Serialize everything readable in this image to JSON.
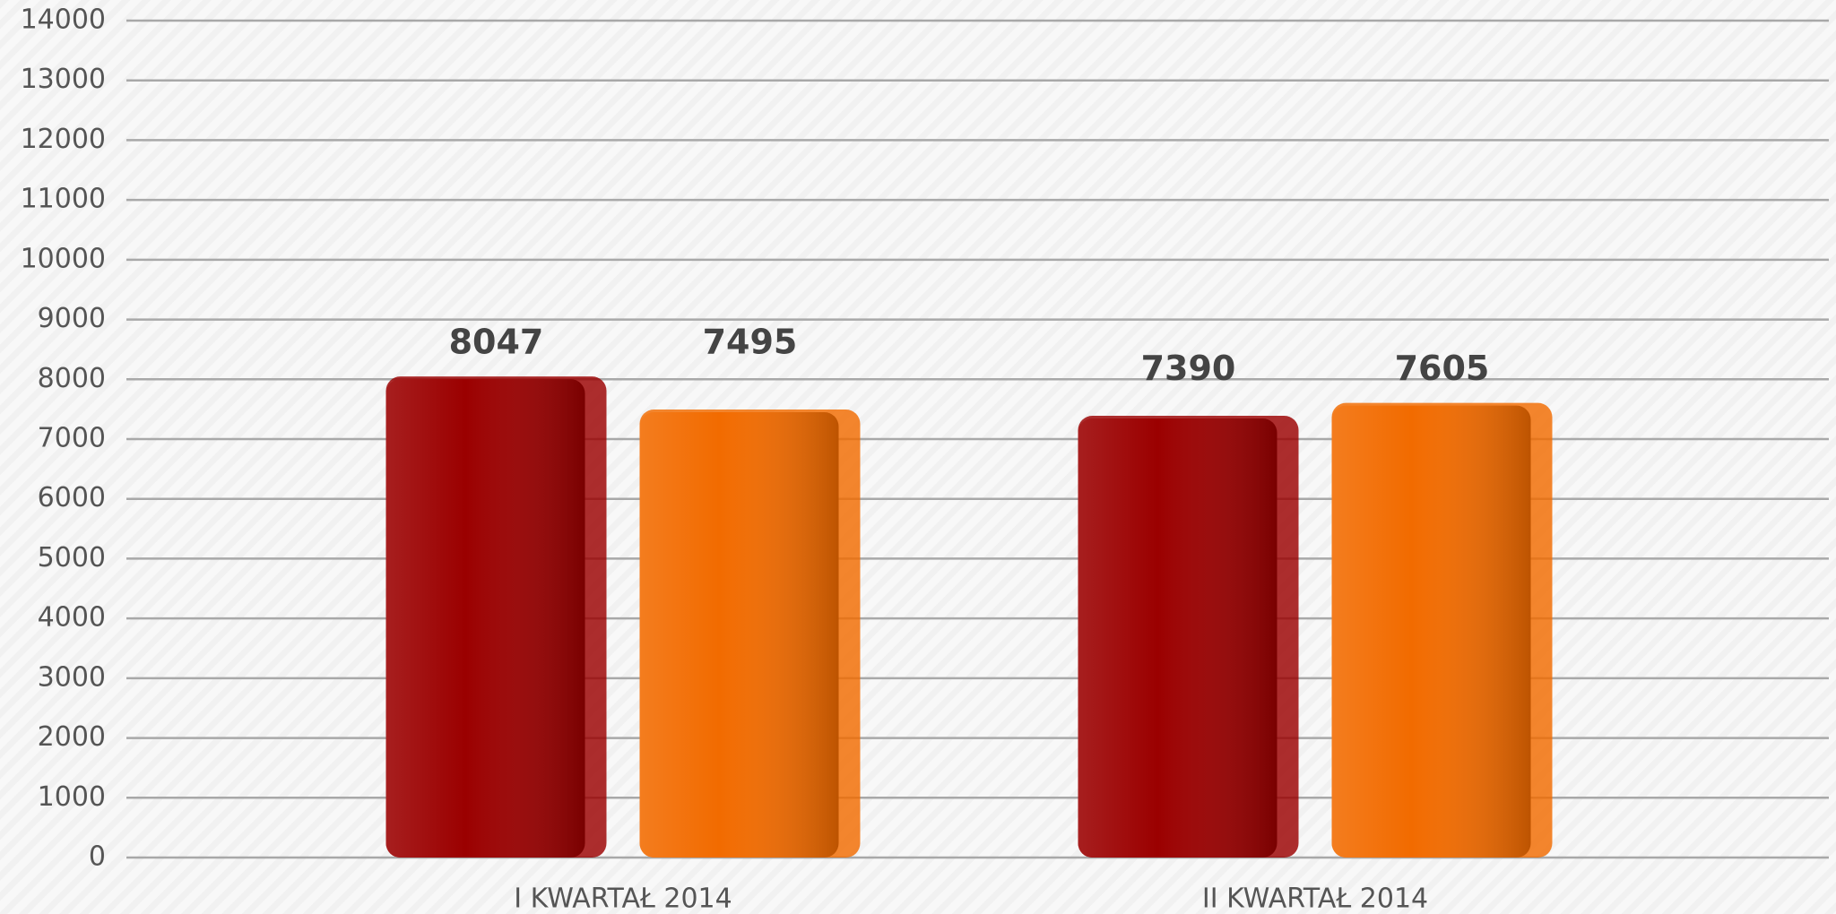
{
  "chart_data": {
    "type": "bar",
    "categories": [
      "I KWARTAŁ 2014",
      "II KWARTAŁ 2014"
    ],
    "series": [
      {
        "color": "#9b0000",
        "values": [
          8047,
          7390
        ]
      },
      {
        "color": "#f26b00",
        "values": [
          7495,
          7605
        ]
      }
    ],
    "ylim": [
      0,
      14000
    ],
    "yticks": [
      0,
      1000,
      2000,
      3000,
      4000,
      5000,
      6000,
      7000,
      8000,
      9000,
      10000,
      11000,
      12000,
      13000,
      14000
    ],
    "grid": true
  }
}
